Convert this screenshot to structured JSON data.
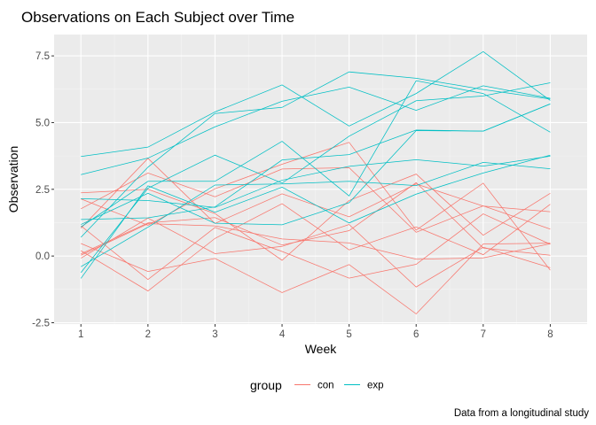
{
  "chart_data": {
    "type": "line",
    "title": "Observations on Each Subject over Time",
    "xlabel": "Week",
    "ylabel": "Observation",
    "caption": "Data from a longitudinal study",
    "x": [
      1,
      2,
      3,
      4,
      5,
      6,
      7,
      8
    ],
    "xlim": [
      0.6,
      8.55
    ],
    "ylim": [
      -2.55,
      8.3
    ],
    "yticks": [
      -2.5,
      0.0,
      2.5,
      5.0,
      7.5
    ],
    "ytick_labels": [
      "-2.5",
      "0.0",
      "2.5",
      "5.0",
      "7.5"
    ],
    "xtick_labels": [
      "1",
      "2",
      "3",
      "4",
      "5",
      "6",
      "7",
      "8"
    ],
    "grid": true,
    "legend": {
      "title": "group",
      "position": "bottom",
      "entries": [
        {
          "label": "con",
          "color": "#F8766D"
        },
        {
          "label": "exp",
          "color": "#00BFC4"
        }
      ]
    },
    "series": [
      {
        "group": "con",
        "values": [
          0.2,
          -1.31,
          0.66,
          1.96,
          0.23,
          1.09,
          0.05,
          1.94
        ]
      },
      {
        "group": "con",
        "values": [
          1.13,
          -0.88,
          1.07,
          0.17,
          -0.83,
          -0.31,
          1.58,
          0.44
        ]
      },
      {
        "group": "con",
        "values": [
          1.77,
          3.11,
          2.22,
          3.26,
          3.31,
          0.89,
          1.88,
          1.01
        ]
      },
      {
        "group": "con",
        "values": [
          1.04,
          3.66,
          1.22,
          2.33,
          1.47,
          2.7,
          1.87,
          1.66
        ]
      },
      {
        "group": "con",
        "values": [
          0.47,
          -0.58,
          -0.09,
          -1.37,
          -0.32,
          -2.17,
          0.45,
          0.48
        ]
      },
      {
        "group": "con",
        "values": [
          2.37,
          2.5,
          1.59,
          -0.16,
          2.08,
          3.07,
          0.78,
          2.35
        ]
      },
      {
        "group": "con",
        "values": [
          0.03,
          1.21,
          1.13,
          0.64,
          0.49,
          -0.12,
          -0.07,
          0.46
        ]
      },
      {
        "group": "con",
        "values": [
          -0.08,
          1.42,
          0.09,
          0.36,
          1.18,
          -1.16,
          0.33,
          -0.44
        ]
      },
      {
        "group": "con",
        "values": [
          0.08,
          1.24,
          1.44,
          0.41,
          0.95,
          2.75,
          0.3,
          0.03
        ]
      },
      {
        "group": "con",
        "values": [
          2.14,
          1.15,
          2.52,
          3.44,
          4.26,
          0.97,
          2.73,
          -0.53
        ]
      },
      {
        "group": "exp",
        "values": [
          3.05,
          3.67,
          4.84,
          5.8,
          6.33,
          5.46,
          6.38,
          5.91
        ]
      },
      {
        "group": "exp",
        "values": [
          -0.84,
          2.63,
          1.64,
          2.58,
          1.24,
          2.32,
          3.11,
          3.78
        ]
      },
      {
        "group": "exp",
        "values": [
          2.15,
          2.08,
          1.82,
          2.84,
          3.36,
          3.61,
          3.37,
          3.74
        ]
      },
      {
        "group": "exp",
        "values": [
          -0.62,
          2.54,
          3.78,
          2.73,
          4.49,
          5.82,
          6.0,
          6.49
        ]
      },
      {
        "group": "exp",
        "values": [
          0.7,
          3.33,
          5.34,
          5.57,
          6.9,
          6.66,
          6.24,
          5.88
        ]
      },
      {
        "group": "exp",
        "values": [
          3.73,
          4.08,
          5.4,
          6.41,
          4.87,
          6.09,
          7.66,
          5.83
        ]
      },
      {
        "group": "exp",
        "values": [
          1.18,
          2.35,
          1.23,
          1.17,
          2.0,
          4.7,
          4.68,
          5.7
        ]
      },
      {
        "group": "exp",
        "values": [
          1.37,
          1.43,
          1.84,
          3.6,
          3.8,
          4.72,
          4.68,
          5.7
        ]
      },
      {
        "group": "exp",
        "values": [
          -0.4,
          1.08,
          2.66,
          2.7,
          2.8,
          2.64,
          3.51,
          3.27
        ]
      },
      {
        "group": "exp",
        "values": [
          1.09,
          2.8,
          2.8,
          4.3,
          2.25,
          6.57,
          6.09,
          4.64
        ]
      }
    ]
  }
}
